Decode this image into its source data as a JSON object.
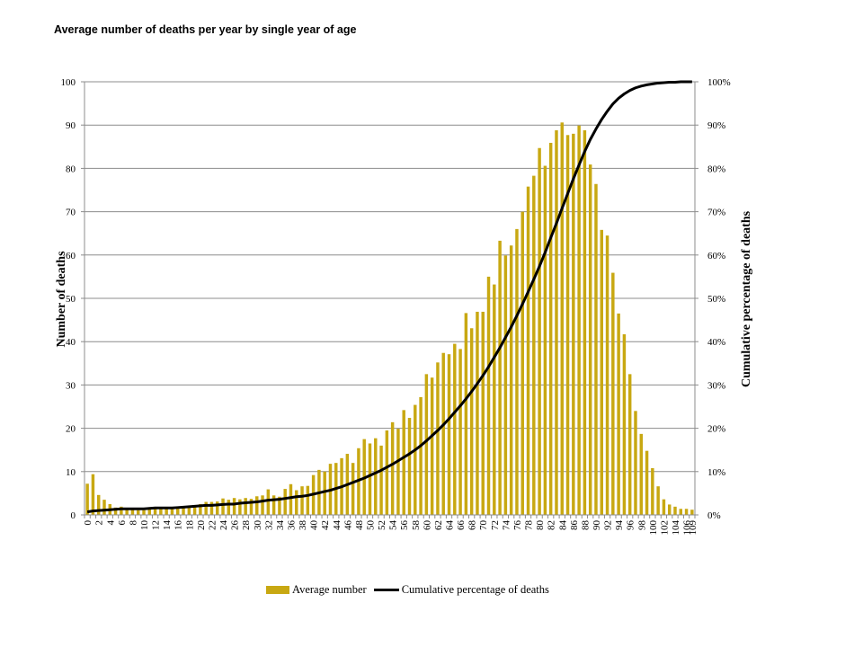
{
  "title": "Average number of deaths per year by single year of age",
  "chart_data": {
    "type": "bar",
    "title": "Average number of deaths per year by single year of age",
    "ylabel": "Number of deaths",
    "y2label": "Cumulative percentage of deaths",
    "ylim": [
      0,
      100
    ],
    "y2lim": [
      0,
      1
    ],
    "yticks": [
      "0",
      "10",
      "20",
      "30",
      "40",
      "50",
      "60",
      "70",
      "80",
      "90",
      "100"
    ],
    "y2ticks": [
      "0%",
      "10%",
      "20%",
      "30%",
      "40%",
      "50%",
      "60%",
      "70%",
      "80%",
      "90%",
      "100%"
    ],
    "xtick_labels": [
      "0",
      "2",
      "4",
      "6",
      "8",
      "10",
      "12",
      "14",
      "16",
      "18",
      "20",
      "22",
      "24",
      "26",
      "28",
      "30",
      "32",
      "34",
      "36",
      "38",
      "40",
      "42",
      "44",
      "46",
      "48",
      "50",
      "52",
      "54",
      "56",
      "58",
      "60",
      "62",
      "64",
      "66",
      "68",
      "70",
      "72",
      "74",
      "76",
      "78",
      "80",
      "82",
      "84",
      "86",
      "88",
      "90",
      "92",
      "94",
      "96",
      "98",
      "100",
      "102",
      "104",
      "106",
      "109"
    ],
    "grid": true,
    "legend_position": "bottom",
    "categories": [
      "0",
      "1",
      "2",
      "3",
      "4",
      "5",
      "6",
      "7",
      "8",
      "9",
      "10",
      "11",
      "12",
      "13",
      "14",
      "15",
      "16",
      "17",
      "18",
      "19",
      "20",
      "21",
      "22",
      "23",
      "24",
      "25",
      "26",
      "27",
      "28",
      "29",
      "30",
      "31",
      "32",
      "33",
      "34",
      "35",
      "36",
      "37",
      "38",
      "39",
      "40",
      "41",
      "42",
      "43",
      "44",
      "45",
      "46",
      "47",
      "48",
      "49",
      "50",
      "51",
      "52",
      "53",
      "54",
      "55",
      "56",
      "57",
      "58",
      "59",
      "60",
      "61",
      "62",
      "63",
      "64",
      "65",
      "66",
      "67",
      "68",
      "69",
      "70",
      "71",
      "72",
      "73",
      "74",
      "75",
      "76",
      "77",
      "78",
      "79",
      "80",
      "81",
      "82",
      "83",
      "84",
      "85",
      "86",
      "87",
      "88",
      "89",
      "90",
      "91",
      "92",
      "93",
      "94",
      "95",
      "96",
      "97",
      "98",
      "99",
      "100",
      "101",
      "102",
      "103",
      "104",
      "105",
      "106",
      "109"
    ],
    "series": [
      {
        "name": "Average number",
        "type": "bar",
        "axis": "left",
        "color": "#c8a812",
        "values": [
          7.2,
          9.4,
          4.6,
          3.5,
          2.5,
          1.7,
          1.9,
          1.4,
          1.3,
          1.1,
          1.1,
          1.3,
          1.5,
          1.4,
          1.5,
          1.6,
          1.7,
          1.8,
          2.0,
          2.2,
          2.5,
          3.0,
          3.0,
          3.1,
          3.8,
          3.5,
          3.9,
          3.6,
          3.9,
          3.7,
          4.3,
          4.5,
          5.9,
          4.5,
          4.2,
          6.0,
          7.1,
          5.7,
          6.6,
          6.7,
          9.2,
          10.4,
          10.0,
          11.8,
          12.0,
          13.1,
          14.1,
          12.0,
          15.4,
          17.5,
          16.5,
          17.7,
          16.0,
          19.5,
          21.4,
          19.9,
          24.2,
          22.4,
          25.4,
          27.2,
          32.5,
          31.7,
          35.2,
          37.4,
          37.1,
          39.5,
          38.3,
          46.6,
          43.1,
          46.9,
          46.9,
          55.0,
          53.2,
          63.3,
          59.9,
          62.2,
          66.0,
          70.0,
          75.8,
          78.3,
          84.7,
          80.6,
          85.9,
          88.8,
          90.6,
          87.7,
          88.0,
          89.9,
          88.8,
          80.9,
          76.4,
          65.8,
          64.5,
          55.9,
          46.5,
          41.7,
          32.5,
          24.0,
          18.7,
          14.8,
          10.8,
          6.6,
          3.6,
          2.4,
          1.9,
          1.4,
          1.4,
          1.2
        ]
      },
      {
        "name": "Cumulative percentage of deaths",
        "type": "line",
        "axis": "right",
        "color": "#000000",
        "values": [
          0.007,
          0.009,
          0.01,
          0.011,
          0.012,
          0.013,
          0.014,
          0.014,
          0.014,
          0.014,
          0.014,
          0.015,
          0.016,
          0.016,
          0.016,
          0.016,
          0.017,
          0.018,
          0.019,
          0.02,
          0.021,
          0.022,
          0.022,
          0.023,
          0.024,
          0.025,
          0.025,
          0.027,
          0.028,
          0.029,
          0.03,
          0.032,
          0.034,
          0.035,
          0.036,
          0.038,
          0.04,
          0.042,
          0.043,
          0.045,
          0.048,
          0.051,
          0.054,
          0.057,
          0.061,
          0.065,
          0.07,
          0.075,
          0.08,
          0.085,
          0.091,
          0.097,
          0.103,
          0.11,
          0.117,
          0.125,
          0.133,
          0.141,
          0.15,
          0.16,
          0.171,
          0.183,
          0.195,
          0.208,
          0.222,
          0.237,
          0.252,
          0.268,
          0.285,
          0.303,
          0.322,
          0.342,
          0.364,
          0.386,
          0.41,
          0.434,
          0.46,
          0.487,
          0.515,
          0.544,
          0.574,
          0.606,
          0.64,
          0.673,
          0.708,
          0.742,
          0.776,
          0.808,
          0.839,
          0.867,
          0.891,
          0.913,
          0.932,
          0.949,
          0.962,
          0.972,
          0.98,
          0.986,
          0.99,
          0.993,
          0.995,
          0.997,
          0.998,
          0.999,
          0.999,
          1.0,
          1.0,
          1.0
        ]
      }
    ]
  }
}
